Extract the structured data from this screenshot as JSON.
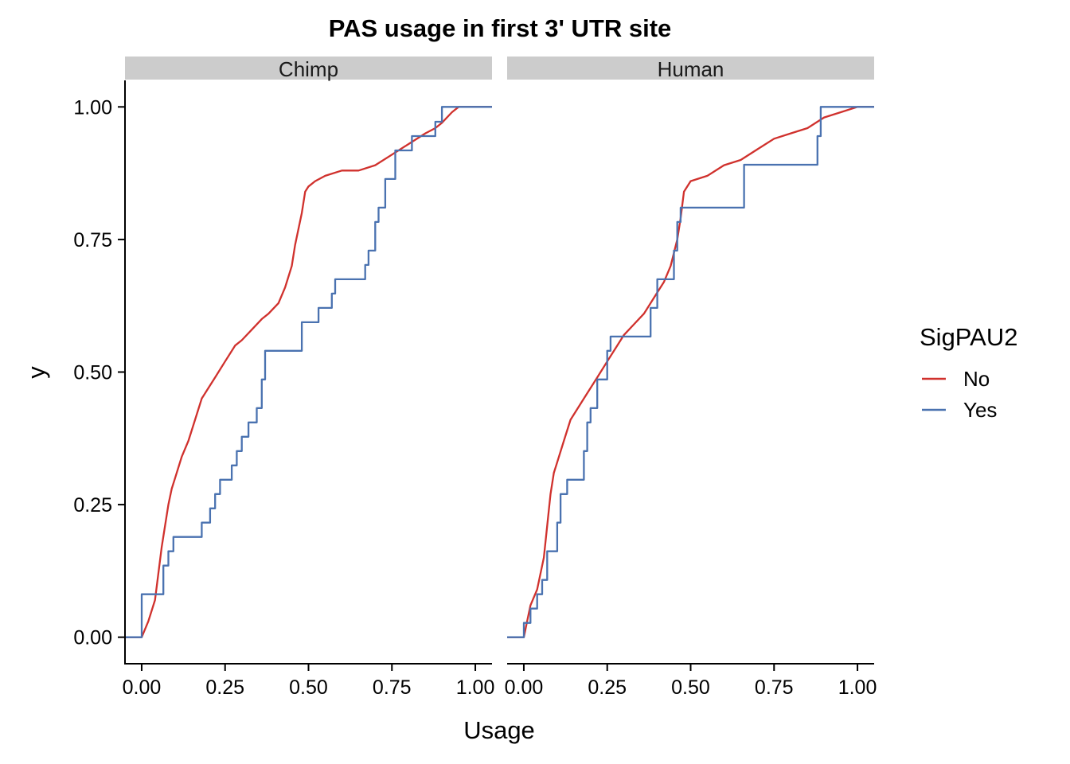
{
  "chart_data": {
    "type": "line",
    "title": "PAS usage in first 3' UTR site",
    "xlabel": "Usage",
    "ylabel": "y",
    "xlim": [
      -0.05,
      1.05
    ],
    "ylim": [
      -0.05,
      1.05
    ],
    "x_ticks": [
      "0.00",
      "0.25",
      "0.50",
      "0.75",
      "1.00"
    ],
    "y_ticks": [
      "0.00",
      "0.25",
      "0.50",
      "0.75",
      "1.00"
    ],
    "x_tick_values": [
      0,
      0.25,
      0.5,
      0.75,
      1.0
    ],
    "y_tick_values": [
      0,
      0.25,
      0.5,
      0.75,
      1.0
    ],
    "grid": false,
    "legend": {
      "title": "SigPAU2",
      "position": "right",
      "entries": [
        {
          "label": "No",
          "color": "#d0312d"
        },
        {
          "label": "Yes",
          "color": "#4a72b0"
        }
      ]
    },
    "facets": [
      {
        "label": "Chimp",
        "series": [
          {
            "name": "No",
            "color": "#d0312d",
            "x": [
              -0.05,
              0.0,
              0.02,
              0.04,
              0.05,
              0.06,
              0.07,
              0.08,
              0.09,
              0.1,
              0.12,
              0.14,
              0.16,
              0.18,
              0.2,
              0.22,
              0.25,
              0.28,
              0.3,
              0.33,
              0.36,
              0.38,
              0.41,
              0.43,
              0.45,
              0.46,
              0.47,
              0.48,
              0.49,
              0.5,
              0.52,
              0.55,
              0.6,
              0.65,
              0.7,
              0.75,
              0.8,
              0.85,
              0.88,
              0.9,
              0.93,
              0.95,
              1.0,
              1.05
            ],
            "y": [
              0,
              0,
              0.03,
              0.07,
              0.12,
              0.17,
              0.21,
              0.25,
              0.28,
              0.3,
              0.34,
              0.37,
              0.41,
              0.45,
              0.47,
              0.49,
              0.52,
              0.55,
              0.56,
              0.58,
              0.6,
              0.61,
              0.63,
              0.66,
              0.7,
              0.74,
              0.77,
              0.8,
              0.84,
              0.85,
              0.86,
              0.87,
              0.88,
              0.88,
              0.89,
              0.91,
              0.93,
              0.95,
              0.96,
              0.97,
              0.99,
              1.0,
              1.0,
              1.0
            ]
          },
          {
            "name": "Yes",
            "color": "#4a72b0",
            "x": [
              -0.05,
              0.0,
              0.0,
              0.065,
              0.065,
              0.08,
              0.08,
              0.095,
              0.095,
              0.18,
              0.18,
              0.205,
              0.205,
              0.22,
              0.22,
              0.235,
              0.235,
              0.27,
              0.27,
              0.285,
              0.285,
              0.3,
              0.3,
              0.32,
              0.32,
              0.345,
              0.345,
              0.36,
              0.36,
              0.37,
              0.37,
              0.38,
              0.38,
              0.48,
              0.48,
              0.53,
              0.53,
              0.57,
              0.57,
              0.58,
              0.58,
              0.67,
              0.67,
              0.68,
              0.68,
              0.7,
              0.7,
              0.71,
              0.71,
              0.73,
              0.73,
              0.76,
              0.76,
              0.81,
              0.81,
              0.88,
              0.88,
              0.9,
              0.9,
              0.92,
              0.92,
              1.05
            ],
            "y": [
              0,
              0,
              0.081,
              0.081,
              0.135,
              0.135,
              0.162,
              0.162,
              0.189,
              0.189,
              0.216,
              0.216,
              0.243,
              0.243,
              0.27,
              0.27,
              0.297,
              0.297,
              0.324,
              0.324,
              0.351,
              0.351,
              0.378,
              0.378,
              0.405,
              0.405,
              0.432,
              0.432,
              0.486,
              0.486,
              0.54,
              0.54,
              0.54,
              0.54,
              0.594,
              0.594,
              0.621,
              0.621,
              0.648,
              0.648,
              0.675,
              0.675,
              0.702,
              0.702,
              0.729,
              0.729,
              0.783,
              0.783,
              0.81,
              0.81,
              0.864,
              0.864,
              0.918,
              0.918,
              0.945,
              0.945,
              0.972,
              0.972,
              1.0,
              1.0,
              1.0,
              1.0
            ]
          }
        ]
      },
      {
        "label": "Human",
        "series": [
          {
            "name": "No",
            "color": "#d0312d",
            "x": [
              -0.05,
              0.0,
              0.01,
              0.02,
              0.04,
              0.06,
              0.07,
              0.08,
              0.09,
              0.1,
              0.12,
              0.14,
              0.16,
              0.18,
              0.2,
              0.22,
              0.25,
              0.28,
              0.3,
              0.33,
              0.36,
              0.38,
              0.4,
              0.42,
              0.44,
              0.46,
              0.47,
              0.48,
              0.49,
              0.5,
              0.55,
              0.6,
              0.65,
              0.7,
              0.75,
              0.8,
              0.85,
              0.9,
              0.95,
              1.0,
              1.05
            ],
            "y": [
              0,
              0,
              0.03,
              0.06,
              0.09,
              0.15,
              0.21,
              0.27,
              0.31,
              0.33,
              0.37,
              0.41,
              0.43,
              0.45,
              0.47,
              0.49,
              0.52,
              0.55,
              0.57,
              0.59,
              0.61,
              0.63,
              0.65,
              0.67,
              0.7,
              0.75,
              0.79,
              0.84,
              0.85,
              0.86,
              0.87,
              0.89,
              0.9,
              0.92,
              0.94,
              0.95,
              0.96,
              0.98,
              0.99,
              1.0,
              1.0
            ]
          },
          {
            "name": "Yes",
            "color": "#4a72b0",
            "x": [
              -0.05,
              0.0,
              0.0,
              0.02,
              0.02,
              0.04,
              0.04,
              0.055,
              0.055,
              0.07,
              0.07,
              0.1,
              0.1,
              0.11,
              0.11,
              0.13,
              0.13,
              0.18,
              0.18,
              0.19,
              0.19,
              0.2,
              0.2,
              0.22,
              0.22,
              0.25,
              0.25,
              0.26,
              0.26,
              0.3,
              0.3,
              0.38,
              0.38,
              0.4,
              0.4,
              0.45,
              0.45,
              0.46,
              0.46,
              0.47,
              0.47,
              0.6,
              0.6,
              0.66,
              0.66,
              0.73,
              0.73,
              0.88,
              0.88,
              0.89,
              0.89,
              1.05
            ],
            "y": [
              0,
              0,
              0.027,
              0.027,
              0.054,
              0.054,
              0.081,
              0.081,
              0.108,
              0.108,
              0.162,
              0.162,
              0.216,
              0.216,
              0.27,
              0.27,
              0.297,
              0.297,
              0.351,
              0.351,
              0.405,
              0.405,
              0.432,
              0.432,
              0.486,
              0.486,
              0.54,
              0.54,
              0.567,
              0.567,
              0.567,
              0.567,
              0.621,
              0.621,
              0.675,
              0.675,
              0.729,
              0.729,
              0.783,
              0.783,
              0.81,
              0.81,
              0.81,
              0.81,
              0.891,
              0.891,
              0.891,
              0.891,
              0.945,
              0.945,
              1.0,
              1.0
            ]
          }
        ]
      }
    ]
  }
}
